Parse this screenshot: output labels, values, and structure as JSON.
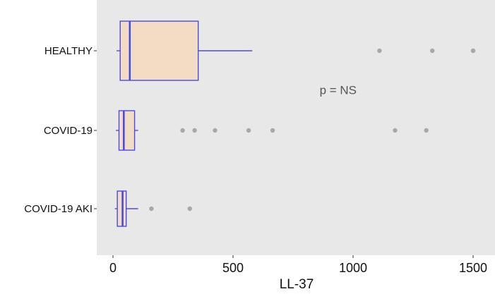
{
  "chart_data": {
    "type": "boxplot",
    "orientation": "horizontal",
    "title": "",
    "xlabel": "LL-37",
    "ylabel": "",
    "xlim": [
      -60,
      1580
    ],
    "xticks": [
      0,
      500,
      1000,
      1500
    ],
    "xtick_labels": [
      "0",
      "500",
      "1000",
      "1500"
    ],
    "grid": false,
    "legend": "none",
    "background": "#e8e8e8",
    "box_fill": "#f2dcc4",
    "box_stroke": "#4a4ae6",
    "outlier_color": "#a8a8a8",
    "annotation": {
      "text": "p = NS",
      "x": 820,
      "y_between": [
        "HEALTHY",
        "COVID-19"
      ]
    },
    "categories": [
      "HEALTHY",
      "COVID-19",
      "COVID-19 AKI"
    ],
    "series": [
      {
        "category": "HEALTHY",
        "whisker_low": 15,
        "q1": 30,
        "median": 70,
        "q3": 355,
        "whisker_high": 580,
        "outliers": [
          1110,
          1330,
          1500
        ]
      },
      {
        "category": "COVID-19",
        "whisker_low": 12,
        "q1": 25,
        "median": 45,
        "q3": 90,
        "whisker_high": 105,
        "outliers": [
          290,
          340,
          425,
          565,
          665,
          1175,
          1305
        ]
      },
      {
        "category": "COVID-19 AKI",
        "whisker_low": 8,
        "q1": 18,
        "median": 40,
        "q3": 55,
        "whisker_high": 105,
        "outliers": [
          160,
          320
        ]
      }
    ]
  }
}
